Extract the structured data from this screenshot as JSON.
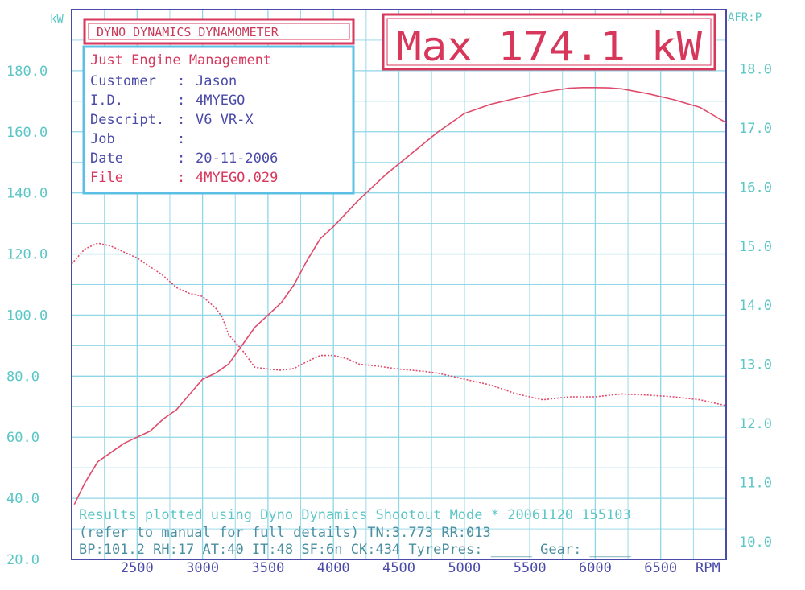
{
  "header": {
    "title": "DYNO DYNAMICS DYNAMOMETER",
    "max_label": "Max 174.1 kW"
  },
  "info": {
    "company": "Just Engine Management",
    "rows": [
      {
        "label": "Customer",
        "value": "Jason"
      },
      {
        "label": "I.D.",
        "value": "4MYEGO"
      },
      {
        "label": "Descript.",
        "value": "V6 VR-X"
      },
      {
        "label": "Job",
        "value": ""
      },
      {
        "label": "Date",
        "value": "20-11-2006"
      },
      {
        "label": "File",
        "value": "4MYEGO.029"
      }
    ]
  },
  "footer": {
    "line1": "Results plotted using Dyno Dynamics Shootout Mode * 20061120 155103",
    "line2": "(refer to manual for full details) TN:3.773 RR:013",
    "line3": "BP:101.2 RH:17 AT:40 IT:48   SF:6n CK:434 TyrePres: _____ Gear: _____"
  },
  "colors": {
    "frame": "#4a4aa8",
    "grid": "#8fd6e6",
    "power_line": "#e04a6a",
    "afr_line": "#e04a6a",
    "left_axis": "#5cc6c6",
    "header_red": "#d8375c",
    "info_border": "#5cc0e6"
  },
  "chart_data": {
    "type": "line",
    "xlabel": "RPM",
    "ylabel_left": "kW",
    "ylabel_right": "AFR:P",
    "xlim": [
      2000,
      7000
    ],
    "ylim_left": [
      20,
      200
    ],
    "ylim_right": [
      9.7,
      19
    ],
    "x_ticks": [
      "2500",
      "3000",
      "3500",
      "4000",
      "4500",
      "5000",
      "5500",
      "6000",
      "6500"
    ],
    "y_ticks_left": [
      "20.0",
      "40.0",
      "60.0",
      "80.0",
      "100.0",
      "120.0",
      "140.0",
      "160.0",
      "180.0"
    ],
    "y_ticks_right": [
      "10.0",
      "11.0",
      "12.0",
      "13.0",
      "14.0",
      "15.0",
      "16.0",
      "17.0",
      "18.0"
    ],
    "grid": true,
    "series": [
      {
        "axis": "left",
        "style": "solid",
        "x": [
          2020,
          2100,
          2200,
          2300,
          2400,
          2500,
          2600,
          2700,
          2800,
          2900,
          3000,
          3100,
          3200,
          3300,
          3400,
          3500,
          3600,
          3700,
          3800,
          3900,
          4000,
          4200,
          4400,
          4600,
          4800,
          5000,
          5200,
          5400,
          5600,
          5800,
          5900,
          6000,
          6100,
          6200,
          6400,
          6600,
          6800,
          7000
        ],
        "y": [
          38,
          45,
          52,
          55,
          58,
          60,
          62,
          66,
          69,
          74,
          79,
          81,
          84,
          90,
          96,
          100,
          104,
          110,
          118,
          125,
          129,
          138,
          146,
          153,
          160,
          166,
          169,
          171,
          173,
          174.3,
          174.5,
          174.5,
          174.4,
          174.1,
          172.5,
          170.5,
          168,
          163
        ]
      },
      {
        "axis": "right",
        "style": "dotted",
        "x": [
          2000,
          2100,
          2200,
          2300,
          2400,
          2500,
          2600,
          2700,
          2800,
          2900,
          3000,
          3100,
          3150,
          3200,
          3300,
          3400,
          3500,
          3600,
          3700,
          3800,
          3900,
          4000,
          4100,
          4200,
          4300,
          4400,
          4500,
          4600,
          4700,
          4800,
          4900,
          5000,
          5200,
          5400,
          5600,
          5800,
          6000,
          6200,
          6400,
          6600,
          6800,
          7000
        ],
        "y": [
          14.7,
          14.95,
          15.05,
          15.0,
          14.9,
          14.8,
          14.65,
          14.5,
          14.3,
          14.2,
          14.15,
          13.95,
          13.8,
          13.5,
          13.25,
          12.95,
          12.92,
          12.9,
          12.93,
          13.05,
          13.15,
          13.15,
          13.1,
          13.0,
          12.98,
          12.95,
          12.92,
          12.9,
          12.88,
          12.85,
          12.8,
          12.75,
          12.65,
          12.5,
          12.4,
          12.45,
          12.45,
          12.5,
          12.48,
          12.45,
          12.4,
          12.3
        ]
      }
    ]
  }
}
